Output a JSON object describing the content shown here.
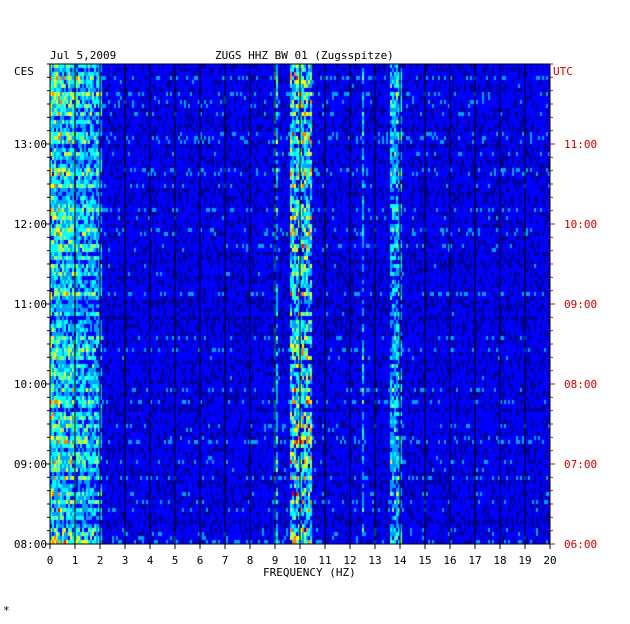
{
  "header": {
    "date": "Jul 5,2009",
    "station": "ZUGS HHZ BW 01 (Zugsspitze)"
  },
  "footer": {
    "mark": "*"
  },
  "colors": {
    "background": "#0000a0",
    "left_time_labels": "#000000",
    "right_time_labels": "#cc0000",
    "grid": "#000000"
  },
  "chart_data": {
    "type": "heatmap",
    "title": "ZUGS HHZ BW 01 (Zugsspitze)",
    "date": "Jul 5,2009",
    "xlabel": "FREQUENCY (HZ)",
    "xlim": [
      0,
      20
    ],
    "x_ticks": [
      "0",
      "1",
      "2",
      "3",
      "4",
      "5",
      "6",
      "7",
      "8",
      "9",
      "10",
      "11",
      "12",
      "13",
      "14",
      "15",
      "16",
      "17",
      "18",
      "19",
      "20"
    ],
    "y_left_label": "CES",
    "y_right_label": "UTC",
    "y_left_ticks": [
      "13:00",
      "12:00",
      "11:00",
      "10:00",
      "09:00",
      "08:00"
    ],
    "y_right_ticks": [
      "11:00",
      "10:00",
      "09:00",
      "08:00",
      "07:00",
      "06:00"
    ],
    "y_range_ces": [
      "08:00",
      "13:50"
    ],
    "colorscale": [
      "#0000a0",
      "#0000ff",
      "#00a0ff",
      "#00ffff",
      "#80ff80",
      "#ffff00",
      "#ff8000",
      "#ff0000"
    ],
    "features": [
      {
        "name": "persistent band",
        "freq_hz": [
          9.6,
          10.4
        ],
        "intensity": "high"
      },
      {
        "name": "line",
        "freq_hz": [
          12.45,
          12.55
        ],
        "intensity": "medium"
      },
      {
        "name": "band",
        "freq_hz": [
          13.6,
          14.0
        ],
        "intensity": "medium"
      },
      {
        "name": "line",
        "freq_hz": [
          8.9,
          9.1
        ],
        "intensity": "medium"
      },
      {
        "name": "low-frequency noise",
        "freq_hz": [
          0,
          2
        ],
        "intensity": "medium"
      }
    ]
  }
}
